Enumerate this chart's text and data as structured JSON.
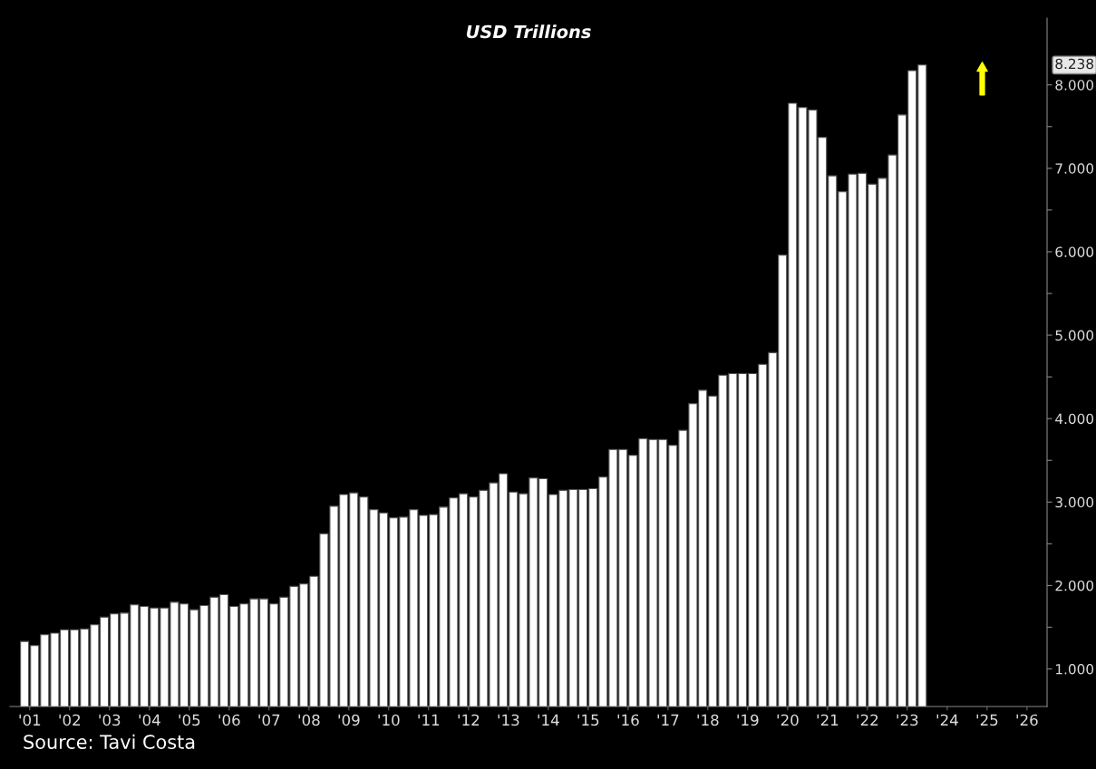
{
  "chart_data": {
    "type": "bar",
    "title": "USD Trillions",
    "x": [
      "2001-05-15",
      "2001-08-15",
      "2001-11-15",
      "2002-02-15",
      "2002-05-15",
      "2002-08-15",
      "2002-11-15",
      "2003-02-15",
      "2003-05-15",
      "2003-08-15",
      "2003-11-15",
      "2004-02-15",
      "2004-05-15",
      "2004-08-15",
      "2004-11-15",
      "2005-02-15",
      "2005-05-15",
      "2005-08-15",
      "2005-11-15",
      "2006-02-15",
      "2006-05-15",
      "2006-08-15",
      "2006-11-15",
      "2007-02-15",
      "2007-05-15",
      "2007-08-15",
      "2007-11-15",
      "2008-02-15",
      "2008-05-15",
      "2008-08-15",
      "2008-11-15",
      "2009-02-15",
      "2009-05-15",
      "2009-08-15",
      "2009-11-15",
      "2010-02-15",
      "2010-05-15",
      "2010-08-15",
      "2010-11-15",
      "2011-02-15",
      "2011-05-15",
      "2011-08-15",
      "2011-11-15",
      "2012-02-15",
      "2012-05-15",
      "2012-08-15",
      "2012-11-15",
      "2013-02-15",
      "2013-05-15",
      "2013-08-15",
      "2013-11-15",
      "2014-02-15",
      "2014-05-15",
      "2014-08-15",
      "2014-11-15",
      "2015-02-15",
      "2015-05-15",
      "2015-08-15",
      "2015-11-15",
      "2016-02-15",
      "2016-05-15",
      "2016-08-15",
      "2016-11-15",
      "2017-02-15",
      "2017-05-15",
      "2017-08-15",
      "2017-11-15",
      "2018-02-15",
      "2018-05-15",
      "2018-08-15",
      "2018-11-15",
      "2019-02-15",
      "2019-05-15",
      "2019-08-15",
      "2019-11-15",
      "2020-02-15",
      "2020-05-15",
      "2020-08-15",
      "2020-11-15",
      "2021-02-15",
      "2021-05-15",
      "2021-08-15",
      "2021-11-15",
      "2022-02-15",
      "2022-05-15",
      "2022-08-15",
      "2022-11-15",
      "2023-02-15",
      "2023-05-15",
      "2023-08-15",
      "2023-11-15"
    ],
    "series": [
      {
        "color": "#ffffff",
        "values": [
          1.33,
          1.28,
          1.41,
          1.43,
          1.47,
          1.47,
          1.48,
          1.53,
          1.62,
          1.66,
          1.67,
          1.77,
          1.75,
          1.73,
          1.73,
          1.8,
          1.78,
          1.71,
          1.76,
          1.86,
          1.89,
          1.75,
          1.78,
          1.84,
          1.84,
          1.78,
          1.86,
          1.99,
          2.02,
          2.11,
          2.62,
          2.95,
          3.09,
          3.11,
          3.06,
          2.91,
          2.87,
          2.81,
          2.82,
          2.91,
          2.84,
          2.85,
          2.94,
          3.05,
          3.1,
          3.06,
          3.14,
          3.23,
          3.34,
          3.12,
          3.1,
          3.29,
          3.28,
          3.09,
          3.14,
          3.15,
          3.15,
          3.16,
          3.3,
          3.63,
          3.63,
          3.56,
          3.76,
          3.75,
          3.75,
          3.68,
          3.86,
          4.18,
          4.34,
          4.27,
          4.52,
          4.54,
          4.54,
          4.54,
          4.65,
          4.79,
          5.96,
          7.78,
          7.73,
          7.7,
          7.37,
          6.91,
          6.72,
          6.93,
          6.94,
          6.81,
          6.88,
          7.16,
          7.64,
          8.17,
          8.238
        ]
      }
    ],
    "xlim": [
      "2001-01-01",
      "2027-01-01"
    ],
    "xticks": [
      {
        "value": "2001-07-01",
        "label": "'01"
      },
      {
        "value": "2002-07-01",
        "label": "'02"
      },
      {
        "value": "2003-07-01",
        "label": "'03"
      },
      {
        "value": "2004-07-01",
        "label": "'04"
      },
      {
        "value": "2005-07-01",
        "label": "'05"
      },
      {
        "value": "2006-07-01",
        "label": "'06"
      },
      {
        "value": "2007-07-01",
        "label": "'07"
      },
      {
        "value": "2008-07-01",
        "label": "'08"
      },
      {
        "value": "2009-07-01",
        "label": "'09"
      },
      {
        "value": "2010-07-01",
        "label": "'10"
      },
      {
        "value": "2011-07-01",
        "label": "'11"
      },
      {
        "value": "2012-07-01",
        "label": "'12"
      },
      {
        "value": "2013-07-01",
        "label": "'13"
      },
      {
        "value": "2014-07-01",
        "label": "'14"
      },
      {
        "value": "2015-07-01",
        "label": "'15"
      },
      {
        "value": "2016-07-01",
        "label": "'16"
      },
      {
        "value": "2017-07-01",
        "label": "'17"
      },
      {
        "value": "2018-07-01",
        "label": "'18"
      },
      {
        "value": "2019-07-01",
        "label": "'19"
      },
      {
        "value": "2020-07-01",
        "label": "'20"
      },
      {
        "value": "2021-07-01",
        "label": "'21"
      },
      {
        "value": "2022-07-01",
        "label": "'22"
      },
      {
        "value": "2023-07-01",
        "label": "'23"
      },
      {
        "value": "2024-07-01",
        "label": "'24"
      },
      {
        "value": "2025-07-01",
        "label": "'25"
      },
      {
        "value": "2026-07-01",
        "label": "'26"
      }
    ],
    "ylim": [
      0.55,
      8.8
    ],
    "yticks": [
      {
        "value": 1,
        "label": "1.000"
      },
      {
        "value": 1.5,
        "label": null
      },
      {
        "value": 2,
        "label": "2.000"
      },
      {
        "value": 2.5,
        "label": null
      },
      {
        "value": 3,
        "label": "3.000"
      },
      {
        "value": 3.5,
        "label": null
      },
      {
        "value": 4,
        "label": "4.000"
      },
      {
        "value": 4.5,
        "label": null
      },
      {
        "value": 5,
        "label": "5.000"
      },
      {
        "value": 5.5,
        "label": null
      },
      {
        "value": 6,
        "label": "6.000"
      },
      {
        "value": 6.5,
        "label": null
      },
      {
        "value": 7,
        "label": "7.000"
      },
      {
        "value": 7.5,
        "label": null
      },
      {
        "value": 8,
        "label": "8.000"
      }
    ],
    "grid": false,
    "legend": false,
    "annotations": [
      "8.238",
      "Source: Tavi Costa"
    ]
  }
}
